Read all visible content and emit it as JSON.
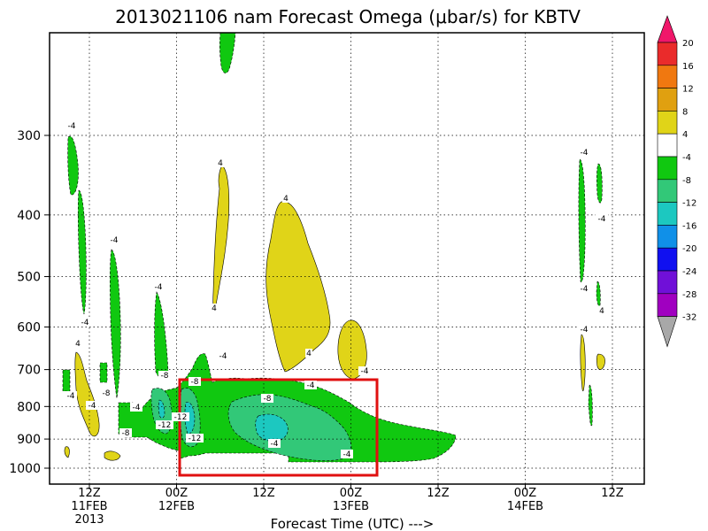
{
  "chart_data": {
    "type": "contour",
    "title": "2013021106 nam Forecast Omega (μbar/s) for KBTV",
    "xlabel": "Forecast Time (UTC) --->",
    "ylabel": "",
    "y_scale": "log (pressure)",
    "ylim": [
      1050,
      180
    ],
    "y_ticks": [
      300,
      400,
      500,
      600,
      700,
      800,
      900,
      1000
    ],
    "y_tick_labels": [
      "300",
      "400",
      "500",
      "600",
      "700",
      "800",
      "900",
      "1000"
    ],
    "x_ticks": [
      {
        "label": "12Z",
        "date": "11FEB",
        "year": "2013"
      },
      {
        "label": "00Z",
        "date": "12FEB",
        "year": ""
      },
      {
        "label": "12Z",
        "date": "",
        "year": ""
      },
      {
        "label": "00Z",
        "date": "13FEB",
        "year": ""
      },
      {
        "label": "12Z",
        "date": "",
        "year": ""
      },
      {
        "label": "00Z",
        "date": "14FEB",
        "year": ""
      },
      {
        "label": "12Z",
        "date": "",
        "year": ""
      }
    ],
    "grid": true,
    "colorbar": {
      "placement": "right",
      "levels": [
        "20",
        "16",
        "12",
        "8",
        "4",
        "-4",
        "-8",
        "-12",
        "-16",
        "-20",
        "-24",
        "-28",
        "-32"
      ],
      "colors": [
        "#f0176a",
        "#ea2b2b",
        "#f07810",
        "#e0a010",
        "#e0d418",
        "#ffffff",
        "#10c810",
        "#32c878",
        "#1cc8c0",
        "#1090e8",
        "#1010f0",
        "#7010d8",
        "#a000c0",
        "#a8a8a8"
      ]
    },
    "contour_labels": [
      "-4",
      "-4",
      "4",
      "-4",
      "-4",
      "-4",
      "-8",
      "-4",
      "-8",
      "-12",
      "4",
      "4",
      "-4",
      "-8",
      "-12",
      "-4",
      "-8",
      "-12",
      "-8",
      "4",
      "4",
      "-4",
      "-4",
      "-4",
      "-4",
      "-4",
      "-4",
      "-4",
      "4",
      "-4"
    ],
    "highlight_box": {
      "color": "#e01010"
    }
  }
}
